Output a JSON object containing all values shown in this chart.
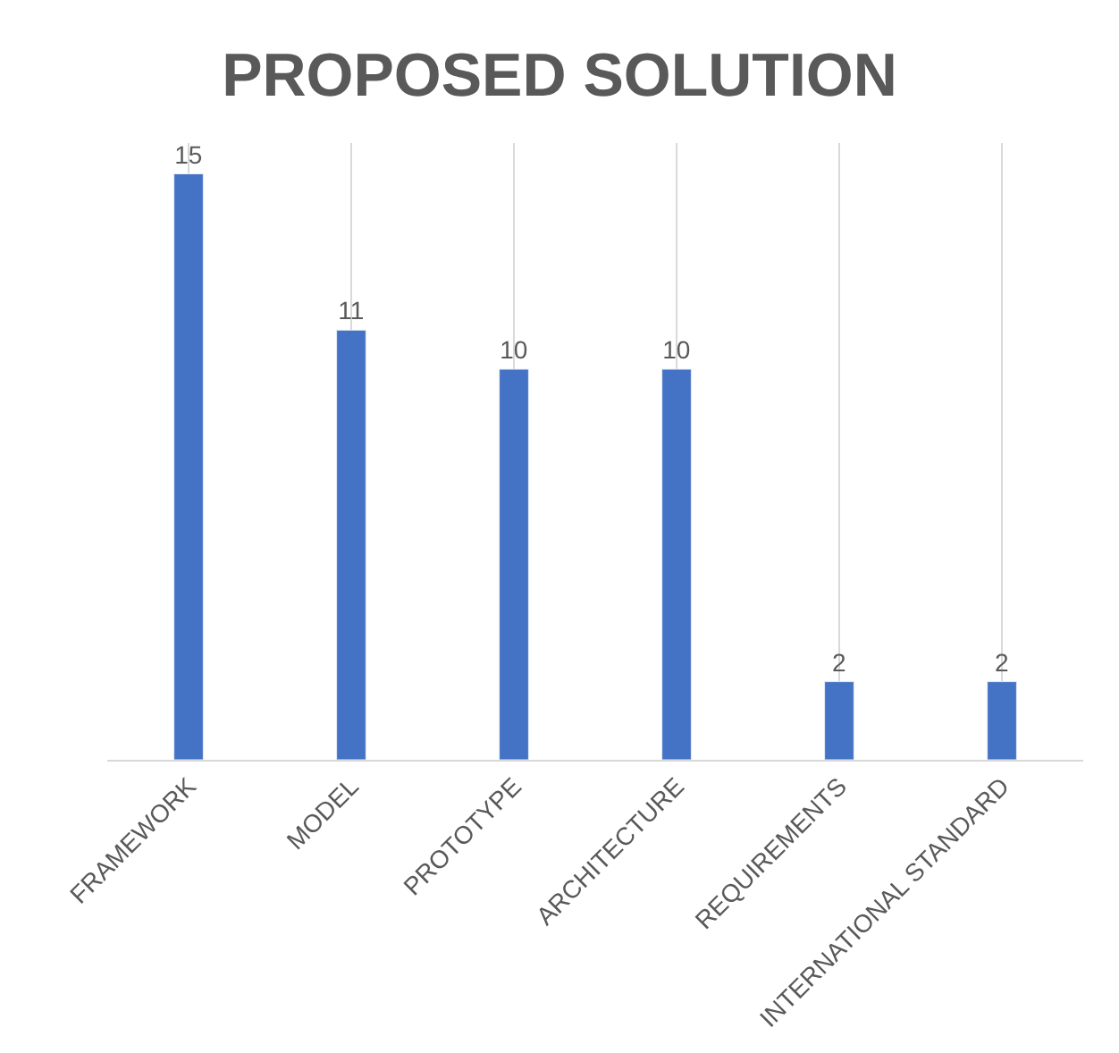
{
  "chart_data": {
    "type": "bar",
    "title": "PROPOSED SOLUTION",
    "categories": [
      "FRAMEWORK",
      "MODEL",
      "PROTOTYPE",
      "ARCHITECTURE",
      "REQUIREMENTS",
      "INTERNATIONAL STANDARD"
    ],
    "values": [
      15,
      11,
      10,
      10,
      2,
      2
    ],
    "color": "#4472c4",
    "data_labels": true,
    "grid": "x",
    "legend": false
  }
}
